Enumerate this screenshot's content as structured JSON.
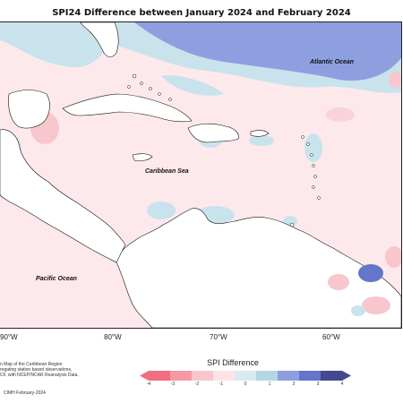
{
  "title": "SPI24 Difference between January 2024 and February 2024",
  "ocean_labels": {
    "atlantic": "Atlantic Ocean",
    "caribbean": "Caribbean Sea",
    "pacific": "Pacific Ocean"
  },
  "longitude_labels": [
    "90°W",
    "80°W",
    "70°W",
    "60°W"
  ],
  "caption": {
    "line1": "n Map of the Caribbean Region",
    "line2": "regating station based observations,",
    "line3": "CF, with NCEP/NCAR Reanalysis Data."
  },
  "credit": "CIMH February-2024",
  "legend": {
    "title": "SPI Difference",
    "ticks": [
      "-4",
      "-3",
      "-2",
      "-1",
      "0",
      "1",
      "2",
      "3",
      "4"
    ],
    "colors": [
      "#ef6f80",
      "#f49aa5",
      "#f8c6cd",
      "#fde3e7",
      "#d8ebf2",
      "#b3d6e3",
      "#8e9fe0",
      "#6376c9",
      "#45488f"
    ]
  },
  "colors": {
    "land": "#ffffff",
    "near_zero_positive": "#fde9ec",
    "weak_negative": "#c9e3ec",
    "strong_negative": "#8e9fe0"
  }
}
